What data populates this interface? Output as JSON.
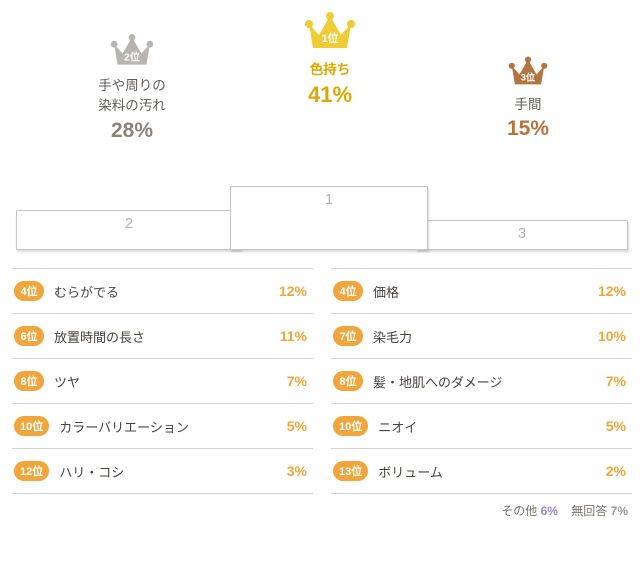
{
  "colors": {
    "gold": "#f0cc34",
    "gold_text": "#d9a900",
    "silver": "#b8b4b0",
    "bronze": "#b27542",
    "badge": "#f0a63c",
    "label": "#635b55",
    "grey_pct": "#8c837c",
    "other_pct": "#9a8bc7",
    "noanswer_pct": "#9e9790"
  },
  "top": {
    "first": {
      "rank": "1位",
      "label": "色持ち",
      "pct": "41%"
    },
    "second": {
      "rank": "2位",
      "label": "手や周りの\n染料の汚れ",
      "pct": "28%"
    },
    "third": {
      "rank": "3位",
      "label": "手間",
      "pct": "15%"
    }
  },
  "steps": {
    "s1": "1",
    "s2": "2",
    "s3": "3"
  },
  "left": [
    {
      "rank": "4位",
      "label": "むらがでる",
      "pct": "12%"
    },
    {
      "rank": "6位",
      "label": "放置時間の長さ",
      "pct": "11%"
    },
    {
      "rank": "8位",
      "label": "ツヤ",
      "pct": "7%"
    },
    {
      "rank": "10位",
      "label": "カラーバリエーション",
      "pct": "5%"
    },
    {
      "rank": "12位",
      "label": "ハリ・コシ",
      "pct": "3%"
    }
  ],
  "right": [
    {
      "rank": "4位",
      "label": "価格",
      "pct": "12%"
    },
    {
      "rank": "7位",
      "label": "染毛力",
      "pct": "10%"
    },
    {
      "rank": "8位",
      "label": "髪・地肌へのダメージ",
      "pct": "7%"
    },
    {
      "rank": "10位",
      "label": "ニオイ",
      "pct": "5%"
    },
    {
      "rank": "13位",
      "label": "ボリューム",
      "pct": "2%"
    }
  ],
  "footer": {
    "other": {
      "label": "その他",
      "pct": "6%"
    },
    "noanswer": {
      "label": "無回答",
      "pct": "7%"
    }
  }
}
